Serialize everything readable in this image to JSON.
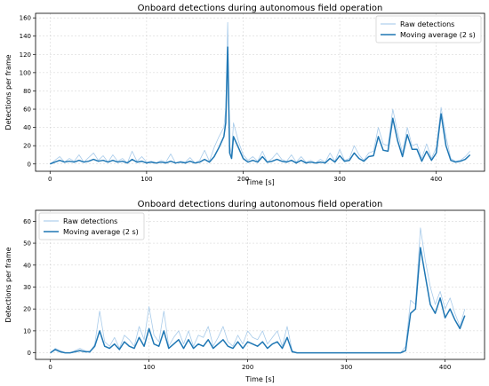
{
  "chart_data": [
    {
      "type": "line",
      "title": "Onboard detections during autonomous field operation",
      "xlabel": "Time [s]",
      "ylabel": "Detections per frame",
      "xlim": [
        -15,
        450
      ],
      "ylim": [
        -8,
        165
      ],
      "xticks": [
        0,
        100,
        200,
        300,
        400
      ],
      "yticks": [
        0,
        20,
        40,
        60,
        80,
        100,
        120,
        140,
        160
      ],
      "grid": true,
      "legend": "top-right",
      "series": [
        {
          "name": "Raw detections",
          "style": "thin-light",
          "x": [
            0,
            5,
            10,
            15,
            20,
            25,
            30,
            35,
            40,
            45,
            50,
            55,
            60,
            65,
            70,
            75,
            80,
            85,
            90,
            95,
            100,
            105,
            110,
            115,
            120,
            125,
            130,
            135,
            140,
            145,
            150,
            155,
            160,
            165,
            170,
            175,
            180,
            182,
            184,
            186,
            188,
            190,
            195,
            200,
            205,
            210,
            215,
            220,
            225,
            230,
            235,
            240,
            245,
            250,
            255,
            260,
            265,
            270,
            275,
            280,
            285,
            290,
            295,
            300,
            305,
            310,
            315,
            320,
            325,
            330,
            335,
            340,
            345,
            350,
            355,
            360,
            365,
            370,
            375,
            380,
            385,
            390,
            395,
            400,
            405,
            410,
            415,
            420,
            425,
            430,
            435
          ],
          "y": [
            0,
            4,
            8,
            2,
            6,
            3,
            10,
            2,
            7,
            12,
            4,
            9,
            2,
            10,
            3,
            6,
            1,
            14,
            3,
            8,
            2,
            3,
            1,
            4,
            2,
            11,
            1,
            3,
            2,
            7,
            1,
            4,
            15,
            3,
            18,
            30,
            40,
            60,
            155,
            20,
            10,
            45,
            25,
            10,
            4,
            8,
            3,
            14,
            2,
            6,
            12,
            5,
            3,
            10,
            2,
            8,
            2,
            4,
            1,
            5,
            2,
            12,
            3,
            16,
            4,
            6,
            20,
            10,
            4,
            12,
            14,
            40,
            22,
            20,
            60,
            34,
            12,
            40,
            20,
            22,
            6,
            22,
            6,
            18,
            62,
            30,
            6,
            3,
            4,
            8,
            14
          ]
        },
        {
          "name": "Moving average (2 s)",
          "style": "thick-dark",
          "x": [
            0,
            5,
            10,
            15,
            20,
            25,
            30,
            35,
            40,
            45,
            50,
            55,
            60,
            65,
            70,
            75,
            80,
            85,
            90,
            95,
            100,
            105,
            110,
            115,
            120,
            125,
            130,
            135,
            140,
            145,
            150,
            155,
            160,
            165,
            170,
            175,
            180,
            182,
            184,
            186,
            188,
            190,
            195,
            200,
            205,
            210,
            215,
            220,
            225,
            230,
            235,
            240,
            245,
            250,
            255,
            260,
            265,
            270,
            275,
            280,
            285,
            290,
            295,
            300,
            305,
            310,
            315,
            320,
            325,
            330,
            335,
            340,
            345,
            350,
            355,
            360,
            365,
            370,
            375,
            380,
            385,
            390,
            395,
            400,
            405,
            410,
            415,
            420,
            425,
            430,
            435
          ],
          "y": [
            0,
            2,
            4,
            2,
            3,
            2,
            4,
            2,
            3,
            5,
            3,
            4,
            2,
            4,
            2,
            3,
            1,
            5,
            2,
            3,
            1,
            2,
            1,
            2,
            1,
            3,
            1,
            2,
            1,
            3,
            1,
            2,
            5,
            2,
            8,
            18,
            30,
            45,
            128,
            12,
            6,
            30,
            18,
            6,
            2,
            4,
            2,
            8,
            2,
            3,
            5,
            3,
            2,
            4,
            1,
            4,
            1,
            2,
            1,
            2,
            1,
            6,
            2,
            9,
            3,
            4,
            12,
            6,
            3,
            8,
            9,
            30,
            15,
            14,
            50,
            25,
            8,
            32,
            16,
            16,
            3,
            14,
            4,
            12,
            55,
            20,
            4,
            2,
            3,
            5,
            10
          ]
        }
      ]
    },
    {
      "type": "line",
      "title": "Onboard detections during autonomous field operation",
      "xlabel": "Time [s]",
      "ylabel": "Detections per frame",
      "xlim": [
        -15,
        440
      ],
      "ylim": [
        -3,
        65
      ],
      "xticks": [
        0,
        100,
        200,
        300,
        400
      ],
      "yticks": [
        0,
        10,
        20,
        30,
        40,
        50,
        60
      ],
      "grid": true,
      "legend": "top-left",
      "series": [
        {
          "name": "Raw detections",
          "style": "thin-light",
          "x": [
            0,
            5,
            10,
            15,
            20,
            25,
            30,
            35,
            40,
            45,
            50,
            55,
            60,
            65,
            70,
            75,
            80,
            85,
            90,
            95,
            100,
            105,
            110,
            115,
            120,
            125,
            130,
            135,
            140,
            145,
            150,
            155,
            160,
            165,
            170,
            175,
            180,
            185,
            190,
            195,
            200,
            205,
            210,
            215,
            220,
            225,
            230,
            235,
            240,
            245,
            250,
            255,
            260,
            265,
            270,
            275,
            280,
            285,
            290,
            295,
            300,
            305,
            310,
            315,
            320,
            325,
            330,
            335,
            340,
            345,
            350,
            355,
            360,
            365,
            370,
            375,
            380,
            385,
            390,
            395,
            400,
            405,
            410,
            415,
            420
          ],
          "y": [
            0,
            2,
            1,
            0,
            0,
            1,
            2,
            1,
            0,
            4,
            19,
            5,
            3,
            7,
            2,
            8,
            6,
            3,
            12,
            6,
            21,
            8,
            5,
            19,
            3,
            7,
            10,
            4,
            10,
            3,
            8,
            7,
            12,
            3,
            7,
            12,
            5,
            3,
            8,
            4,
            10,
            7,
            6,
            10,
            4,
            7,
            10,
            3,
            12,
            1,
            0,
            0,
            0,
            0,
            0,
            0,
            0,
            0,
            0,
            0,
            0,
            0,
            0,
            0,
            0,
            0,
            0,
            0,
            0,
            0,
            0,
            0,
            3,
            24,
            22,
            57,
            42,
            30,
            22,
            28,
            20,
            25,
            18,
            12,
            20
          ]
        },
        {
          "name": "Moving average (2 s)",
          "style": "thick-dark",
          "x": [
            0,
            5,
            10,
            15,
            20,
            25,
            30,
            35,
            40,
            45,
            50,
            55,
            60,
            65,
            70,
            75,
            80,
            85,
            90,
            95,
            100,
            105,
            110,
            115,
            120,
            125,
            130,
            135,
            140,
            145,
            150,
            155,
            160,
            165,
            170,
            175,
            180,
            185,
            190,
            195,
            200,
            205,
            210,
            215,
            220,
            225,
            230,
            235,
            240,
            245,
            250,
            255,
            260,
            265,
            270,
            275,
            280,
            285,
            290,
            295,
            300,
            305,
            310,
            315,
            320,
            325,
            330,
            335,
            340,
            345,
            350,
            355,
            360,
            365,
            370,
            375,
            380,
            385,
            390,
            395,
            400,
            405,
            410,
            415,
            420
          ],
          "y": [
            0,
            1.5,
            0.5,
            0,
            0,
            0.5,
            1,
            0.5,
            0.5,
            3,
            10,
            3,
            2,
            4,
            1.5,
            5,
            3,
            2,
            7,
            3,
            11,
            4,
            3,
            10,
            2,
            4,
            6,
            2,
            6,
            2,
            4,
            3,
            6,
            2,
            4,
            6,
            3,
            2,
            5,
            2,
            5,
            4,
            3,
            5,
            2,
            4,
            5,
            2,
            7,
            0.5,
            0,
            0,
            0,
            0,
            0,
            0,
            0,
            0,
            0,
            0,
            0,
            0,
            0,
            0,
            0,
            0,
            0,
            0,
            0,
            0,
            0,
            0,
            1,
            18,
            20,
            48,
            35,
            22,
            18,
            25,
            16,
            20,
            15,
            11,
            17
          ]
        }
      ]
    }
  ],
  "colors": {
    "raw": "#9ec5e8",
    "avg": "#1f77b4",
    "grid": "#b0b0b0",
    "axis": "#000000"
  }
}
